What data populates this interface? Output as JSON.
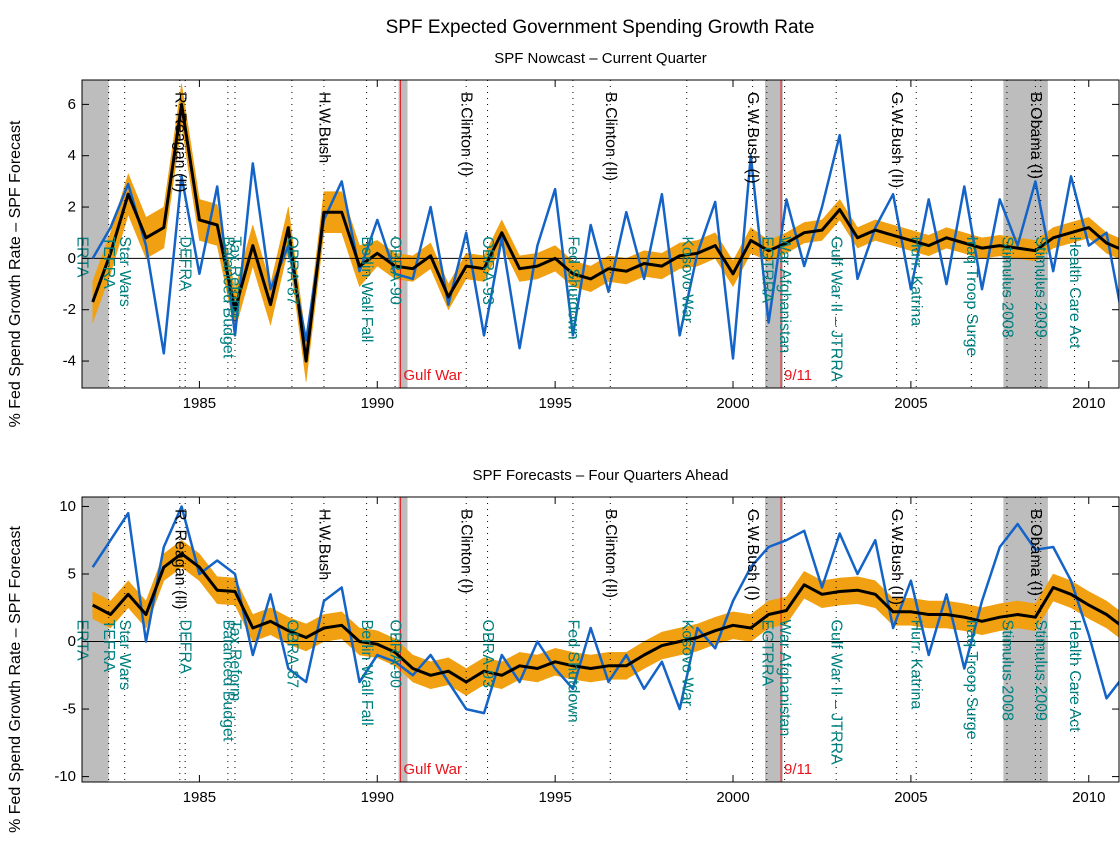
{
  "title": "SPF Expected Government Spending Growth Rate",
  "recessions": [
    [
      1981.7,
      1982.45
    ],
    [
      1990.6,
      1990.85
    ],
    [
      2000.9,
      2001.4
    ],
    [
      2007.6,
      2008.85
    ]
  ],
  "recession_color": "#bdbdbd",
  "events": [
    {
      "x": 1981.7,
      "label": "ERTA",
      "color": "#008080",
      "anchor": "middle",
      "line": "dotted"
    },
    {
      "x": 1982.45,
      "label": "TEFRA",
      "color": "#008080",
      "anchor": "middle",
      "line": "dotted"
    },
    {
      "x": 1982.9,
      "label": "Star Wars",
      "color": "#008080",
      "anchor": "middle",
      "line": "dotted"
    },
    {
      "x": 1984.45,
      "label": "R. Reagan (II)",
      "color": "#000000",
      "anchor": "top",
      "line": "dotted"
    },
    {
      "x": 1984.6,
      "label": "DEFRA",
      "color": "#008080",
      "anchor": "middle",
      "line": "dotted"
    },
    {
      "x": 1985.8,
      "label": "Balanced Budget",
      "color": "#008080",
      "anchor": "middle",
      "line": "dotted"
    },
    {
      "x": 1986.0,
      "label": "Tax Reform",
      "color": "#008080",
      "anchor": "middle",
      "line": "dotted"
    },
    {
      "x": 1987.6,
      "label": "OBRA-87",
      "color": "#008080",
      "anchor": "middle",
      "line": "dotted"
    },
    {
      "x": 1988.5,
      "label": "H.W.Bush",
      "color": "#000000",
      "anchor": "top",
      "line": "dotted"
    },
    {
      "x": 1989.7,
      "label": "Berlin Wall Fall",
      "color": "#008080",
      "anchor": "middle",
      "line": "dotted"
    },
    {
      "x": 1990.5,
      "label": "OBRA-90",
      "color": "#008080",
      "anchor": "middle",
      "line": "dotted"
    },
    {
      "x": 1990.65,
      "label": "Gulf War",
      "color": "#e8141c",
      "anchor": "bottom",
      "line": "solid"
    },
    {
      "x": 1992.5,
      "label": "B.Clinton (I)",
      "color": "#000000",
      "anchor": "top",
      "line": "dotted"
    },
    {
      "x": 1993.1,
      "label": "OBRA-93",
      "color": "#008080",
      "anchor": "middle",
      "line": "dotted"
    },
    {
      "x": 1995.5,
      "label": "Fed Shutdown",
      "color": "#008080",
      "anchor": "middle",
      "line": "dotted"
    },
    {
      "x": 1996.55,
      "label": "B.Clinton (II)",
      "color": "#000000",
      "anchor": "top",
      "line": "dotted"
    },
    {
      "x": 1998.7,
      "label": "Kosovo War",
      "color": "#008080",
      "anchor": "middle",
      "line": "dotted"
    },
    {
      "x": 2000.55,
      "label": "G.W.Bush (I)",
      "color": "#000000",
      "anchor": "top",
      "line": "dotted"
    },
    {
      "x": 2000.95,
      "label": "EGTRRA",
      "color": "#008080",
      "anchor": "middle",
      "line": "dotted"
    },
    {
      "x": 2001.35,
      "label": "9/11",
      "color": "#e8141c",
      "anchor": "bottom",
      "line": "solid"
    },
    {
      "x": 2001.45,
      "label": "War Afghanistan",
      "color": "#008080",
      "anchor": "middle",
      "line": "dotted"
    },
    {
      "x": 2002.9,
      "label": "Gulf War II – JTRRA",
      "color": "#008080",
      "anchor": "middle",
      "line": "dotted"
    },
    {
      "x": 2004.6,
      "label": "G.W.Bush (II)",
      "color": "#000000",
      "anchor": "top",
      "line": "dotted"
    },
    {
      "x": 2005.15,
      "label": "Hurr. Katrina",
      "color": "#008080",
      "anchor": "middle",
      "line": "dotted"
    },
    {
      "x": 2006.7,
      "label": "Iraq Troop Surge",
      "color": "#008080",
      "anchor": "middle",
      "line": "dotted"
    },
    {
      "x": 2007.7,
      "label": "Stimulus 2008",
      "color": "#008080",
      "anchor": "middle",
      "line": "dotted"
    },
    {
      "x": 2008.5,
      "label": "B.Obama (I)",
      "color": "#000000",
      "anchor": "top",
      "line": "dotted"
    },
    {
      "x": 2008.65,
      "label": "Stimulus 2009",
      "color": "#008080",
      "anchor": "middle",
      "line": "dotted"
    },
    {
      "x": 2009.6,
      "label": "Health Care Act",
      "color": "#008080",
      "anchor": "middle",
      "line": "dotted"
    }
  ],
  "chart_data": [
    {
      "type": "line",
      "title": "SPF Nowcast – Current Quarter",
      "y_label": "% Fed Spend Growth Rate – SPF Forecast",
      "xlim": [
        1981.7,
        2010.85
      ],
      "xticks": [
        1985,
        1990,
        1995,
        2000,
        2005,
        2010
      ],
      "ylim": [
        -5.05,
        6.95
      ],
      "yticks": [
        -4,
        -2,
        0,
        2,
        4,
        6
      ],
      "zero_line": true,
      "x": [
        1982.0,
        1982.5,
        1983.0,
        1983.5,
        1984.0,
        1984.5,
        1985.0,
        1985.5,
        1986.0,
        1986.5,
        1987.0,
        1987.5,
        1988.0,
        1988.5,
        1989.0,
        1989.5,
        1990.0,
        1990.5,
        1991.0,
        1991.5,
        1992.0,
        1992.5,
        1993.0,
        1993.5,
        1994.0,
        1994.5,
        1995.0,
        1995.5,
        1996.0,
        1996.5,
        1997.0,
        1997.5,
        1998.0,
        1998.5,
        1999.0,
        1999.5,
        2000.0,
        2000.5,
        2001.0,
        2001.5,
        2002.0,
        2002.5,
        2003.0,
        2003.5,
        2004.0,
        2004.5,
        2005.0,
        2005.5,
        2006.0,
        2006.5,
        2007.0,
        2007.5,
        2008.0,
        2008.5,
        2009.0,
        2009.5,
        2010.0,
        2010.5,
        2011.0
      ],
      "band": {
        "color": "#f0a010",
        "lower": [
          -2.5,
          -0.6,
          1.7,
          0.0,
          0.4,
          5.2,
          0.7,
          0.5,
          -2.8,
          -0.3,
          -2.6,
          0.4,
          -4.8,
          1.0,
          1.0,
          -1.1,
          -0.3,
          -0.8,
          -0.9,
          -0.4,
          -2.0,
          -0.8,
          -0.9,
          0.5,
          -0.9,
          -0.8,
          -0.5,
          -1.1,
          -1.3,
          -0.9,
          -1.0,
          -0.7,
          -0.8,
          -0.4,
          -0.3,
          0.0,
          -1.1,
          0.2,
          -0.1,
          0.2,
          0.6,
          0.7,
          1.5,
          0.4,
          0.7,
          0.5,
          0.3,
          0.1,
          0.4,
          0.2,
          0.0,
          0.1,
          0.0,
          -0.1,
          0.4,
          0.6,
          0.8,
          0.2,
          -0.1
        ],
        "upper": [
          -0.9,
          1.0,
          3.3,
          1.6,
          2.0,
          6.8,
          2.3,
          2.1,
          -1.2,
          1.3,
          -1.0,
          2.0,
          -3.2,
          2.6,
          2.6,
          0.5,
          0.7,
          0.2,
          0.1,
          0.6,
          -1.0,
          0.2,
          0.1,
          1.5,
          0.1,
          0.2,
          0.5,
          -0.1,
          -0.3,
          0.1,
          0.0,
          0.3,
          0.2,
          0.6,
          0.7,
          1.0,
          -0.1,
          1.2,
          0.7,
          1.0,
          1.4,
          1.5,
          2.3,
          1.2,
          1.5,
          1.3,
          1.1,
          0.9,
          1.2,
          1.0,
          0.8,
          0.9,
          0.8,
          0.7,
          1.2,
          1.4,
          1.6,
          1.0,
          0.7
        ]
      },
      "series": [
        {
          "color": "#1464c8",
          "values": [
            0.0,
            1.2,
            2.9,
            0.5,
            -3.7,
            3.2,
            -0.6,
            2.8,
            -3.0,
            3.7,
            -1.2,
            0.5,
            -3.2,
            1.5,
            3.0,
            -0.5,
            1.5,
            -0.6,
            -0.8,
            2.0,
            -1.8,
            1.0,
            -3.0,
            0.8,
            -3.5,
            0.5,
            2.7,
            -3.0,
            1.3,
            -1.3,
            1.8,
            -0.8,
            2.5,
            -3.0,
            0.2,
            2.2,
            -3.9,
            4.0,
            -2.5,
            2.3,
            -0.3,
            2.0,
            4.8,
            -0.8,
            1.2,
            2.5,
            -1.2,
            2.3,
            -1.0,
            2.8,
            -1.2,
            2.3,
            0.5,
            3.0,
            -0.5,
            3.2,
            0.5,
            1.0,
            -2.7
          ]
        },
        {
          "color": "#000000",
          "values": [
            -1.7,
            0.2,
            2.5,
            0.8,
            1.2,
            6.0,
            1.5,
            1.3,
            -2.0,
            0.5,
            -1.8,
            1.2,
            -4.0,
            1.8,
            1.8,
            -0.3,
            0.2,
            -0.3,
            -0.4,
            0.1,
            -1.5,
            -0.3,
            -0.4,
            1.0,
            -0.4,
            -0.3,
            0.0,
            -0.6,
            -0.8,
            -0.4,
            -0.5,
            -0.2,
            -0.3,
            0.1,
            0.2,
            0.5,
            -0.6,
            0.7,
            0.3,
            0.6,
            1.0,
            1.1,
            1.9,
            0.8,
            1.1,
            0.9,
            0.7,
            0.5,
            0.8,
            0.6,
            0.4,
            0.5,
            0.4,
            0.3,
            0.8,
            1.0,
            1.2,
            0.6,
            0.3
          ]
        }
      ]
    },
    {
      "type": "line",
      "title": "SPF Forecasts – Four Quarters Ahead",
      "y_label": "% Fed Spend Growth Rate – SPF Forecast",
      "xlim": [
        1981.7,
        2010.85
      ],
      "xticks": [
        1985,
        1990,
        1995,
        2000,
        2005,
        2010
      ],
      "ylim": [
        -10.4,
        10.7
      ],
      "yticks": [
        -10,
        -5,
        0,
        5,
        10
      ],
      "zero_line": true,
      "x": [
        1982.0,
        1982.5,
        1983.0,
        1983.5,
        1984.0,
        1984.5,
        1985.0,
        1985.5,
        1986.0,
        1986.5,
        1987.0,
        1987.5,
        1988.0,
        1988.5,
        1989.0,
        1989.5,
        1990.0,
        1990.5,
        1991.0,
        1991.5,
        1992.0,
        1992.5,
        1993.0,
        1993.5,
        1994.0,
        1994.5,
        1995.0,
        1995.5,
        1996.0,
        1996.5,
        1997.0,
        1997.5,
        1998.0,
        1998.5,
        1999.0,
        1999.5,
        2000.0,
        2000.5,
        2001.0,
        2001.5,
        2002.0,
        2002.5,
        2003.0,
        2003.5,
        2004.0,
        2004.5,
        2005.0,
        2005.5,
        2006.0,
        2006.5,
        2007.0,
        2007.5,
        2008.0,
        2008.5,
        2009.0,
        2009.5,
        2010.0,
        2010.5,
        2011.0
      ],
      "band": {
        "color": "#f0a010",
        "lower": [
          1.7,
          1.0,
          2.5,
          1.0,
          4.5,
          5.5,
          4.5,
          2.8,
          2.7,
          0.0,
          0.5,
          -0.2,
          -0.7,
          0.0,
          0.2,
          -1.0,
          -1.2,
          -1.8,
          -3.0,
          -3.5,
          -3.2,
          -4.0,
          -3.2,
          -3.5,
          -2.8,
          -3.0,
          -2.5,
          -2.8,
          -3.0,
          -2.8,
          -2.8,
          -2.0,
          -1.3,
          -1.0,
          -0.7,
          -0.2,
          0.2,
          0.0,
          1.0,
          1.3,
          3.2,
          2.5,
          2.7,
          2.8,
          2.5,
          1.2,
          1.2,
          1.0,
          1.0,
          0.8,
          0.5,
          0.8,
          1.0,
          0.8,
          3.0,
          2.5,
          1.7,
          1.0,
          0.0
        ],
        "upper": [
          3.7,
          3.0,
          4.5,
          3.0,
          6.5,
          7.5,
          6.5,
          4.8,
          4.7,
          2.0,
          2.5,
          1.8,
          1.3,
          2.0,
          2.2,
          1.0,
          0.8,
          0.2,
          -1.0,
          -1.5,
          -1.2,
          -2.0,
          -1.2,
          -1.5,
          -0.8,
          -1.0,
          -0.5,
          -0.8,
          -1.0,
          -0.8,
          -0.8,
          0.0,
          0.7,
          1.0,
          1.3,
          1.8,
          2.2,
          2.0,
          3.0,
          3.3,
          5.2,
          4.5,
          4.7,
          4.8,
          4.5,
          3.2,
          3.2,
          3.0,
          3.0,
          2.8,
          2.5,
          2.8,
          3.0,
          2.8,
          5.0,
          4.5,
          3.7,
          3.0,
          2.0
        ]
      },
      "series": [
        {
          "color": "#1464c8",
          "values": [
            5.5,
            7.5,
            9.5,
            0.0,
            7.0,
            10.0,
            5.0,
            6.0,
            5.0,
            -1.0,
            3.5,
            -2.0,
            -3.0,
            3.0,
            4.0,
            -3.0,
            -1.0,
            -1.5,
            -2.5,
            -1.0,
            -3.0,
            -5.0,
            -5.3,
            -1.0,
            -3.0,
            0.0,
            -2.0,
            -3.5,
            1.0,
            -3.0,
            -1.0,
            -3.5,
            -1.5,
            -5.0,
            1.0,
            -0.5,
            3.0,
            5.5,
            7.0,
            7.5,
            8.2,
            4.0,
            8.0,
            5.0,
            7.5,
            1.0,
            4.5,
            -1.0,
            3.5,
            -2.0,
            3.0,
            7.0,
            8.7,
            6.8,
            7.0,
            4.5,
            0.5,
            -4.2,
            -2.5
          ]
        },
        {
          "color": "#000000",
          "values": [
            2.7,
            2.0,
            3.5,
            2.0,
            5.5,
            6.5,
            5.5,
            3.8,
            3.7,
            1.0,
            1.5,
            0.8,
            0.3,
            1.0,
            1.2,
            0.0,
            -0.2,
            -0.8,
            -2.0,
            -2.5,
            -2.2,
            -3.0,
            -2.2,
            -2.5,
            -1.8,
            -2.0,
            -1.5,
            -1.8,
            -2.0,
            -1.8,
            -1.8,
            -1.0,
            -0.3,
            0.0,
            0.3,
            0.8,
            1.2,
            1.0,
            2.0,
            2.3,
            4.2,
            3.5,
            3.7,
            3.8,
            3.5,
            2.2,
            2.2,
            2.0,
            2.0,
            1.8,
            1.5,
            1.8,
            2.0,
            1.8,
            4.0,
            3.5,
            2.7,
            2.0,
            1.0
          ]
        }
      ]
    }
  ]
}
